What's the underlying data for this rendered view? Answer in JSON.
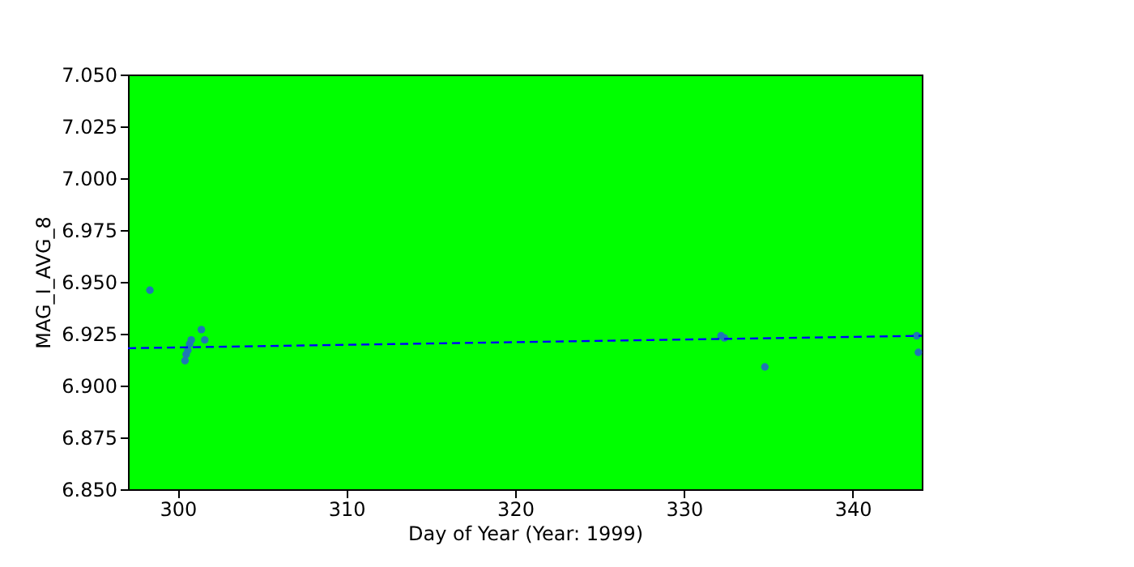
{
  "chart_data": {
    "type": "scatter",
    "xlabel": "Day of Year (Year: 1999)",
    "ylabel": "MAG_I_AVG_8",
    "xlim": [
      297.05,
      344.1
    ],
    "xticks": [
      300,
      310,
      320,
      330,
      340
    ],
    "ylim": [
      6.85,
      7.05
    ],
    "yticks": [
      {
        "value": 6.85,
        "label": "6.850"
      },
      {
        "value": 6.875,
        "label": "6.875"
      },
      {
        "value": 6.9,
        "label": "6.900"
      },
      {
        "value": 6.925,
        "label": "6.925"
      },
      {
        "value": 6.95,
        "label": "6.950"
      },
      {
        "value": 6.975,
        "label": "6.975"
      },
      {
        "value": 7.0,
        "label": "7.000"
      },
      {
        "value": 7.025,
        "label": "7.025"
      },
      {
        "value": 7.05,
        "label": "7.050"
      }
    ],
    "grid": false,
    "marker": "circle",
    "series": [
      {
        "type": "scatter",
        "color": "#1f77b4",
        "x": [
          298.35,
          300.43,
          300.5,
          300.6,
          300.7,
          300.8,
          301.4,
          301.6,
          332.2,
          332.4,
          334.8,
          343.8,
          343.9
        ],
        "values": [
          6.946,
          6.912,
          6.915,
          6.917,
          6.92,
          6.922,
          6.927,
          6.922,
          6.924,
          6.923,
          6.909,
          6.924,
          6.916
        ]
      },
      {
        "type": "line",
        "color": "#0000ff",
        "line_style": "dashed",
        "marker": "none",
        "x": [
          297.05,
          344.1
        ],
        "values": [
          6.918,
          6.924
        ]
      }
    ]
  }
}
